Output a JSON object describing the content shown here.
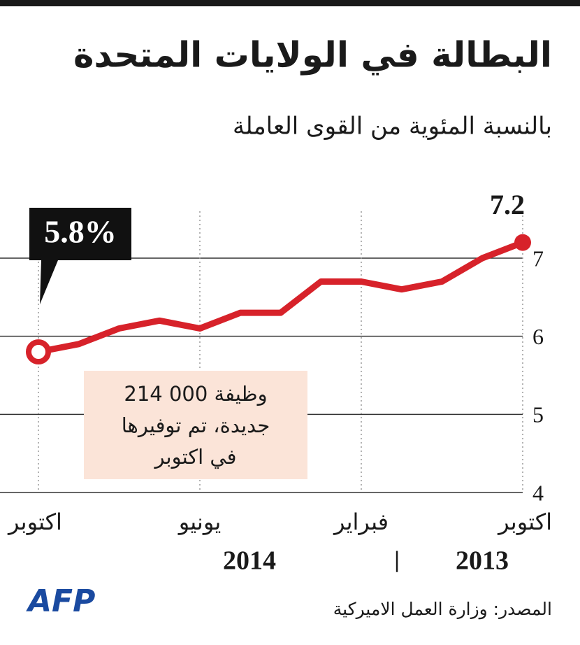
{
  "chart_data": {
    "type": "line",
    "title": "البطالة في الولايات المتحدة",
    "subtitle": "بالنسبة المئوية من القوى العاملة",
    "categories": [
      "اكتوبر",
      null,
      null,
      null,
      "فبراير",
      null,
      null,
      null,
      "يونيو",
      null,
      null,
      null,
      "اكتوبر"
    ],
    "years": [
      "2013",
      "2014"
    ],
    "series": [
      {
        "color": "#d7222a",
        "values": [
          7.2,
          7.0,
          6.7,
          6.6,
          6.7,
          6.7,
          6.3,
          6.3,
          6.1,
          6.2,
          6.1,
          5.9,
          5.8
        ],
        "value_labels": [
          "7.2",
          null,
          null,
          null,
          null,
          null,
          null,
          null,
          null,
          null,
          null,
          null,
          "5.8%"
        ]
      }
    ],
    "ylim": [
      4,
      7.6
    ],
    "yticks": [
      4,
      5,
      6,
      7
    ],
    "grid": true,
    "annotation": [
      "214 000 وظيفة",
      "جديدة، تم توفيرها",
      "في اكتوبر"
    ],
    "source": "المصدر: وزارة العمل الاميركية",
    "logo": "AFP"
  }
}
